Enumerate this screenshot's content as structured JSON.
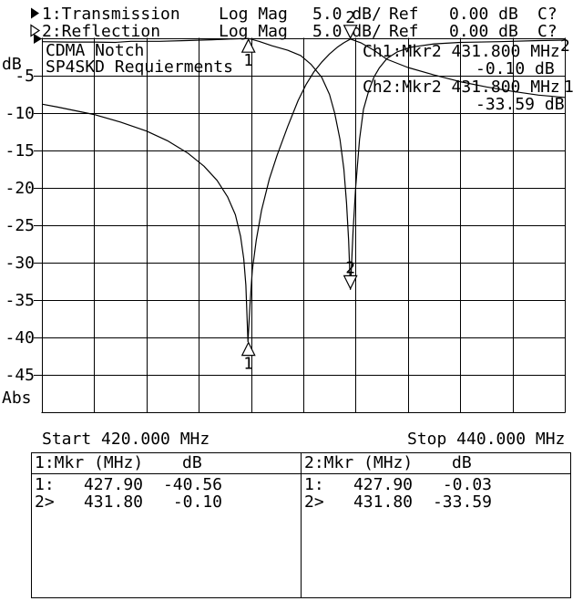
{
  "screen": {
    "bg": "#ffffff",
    "fg": "#000000"
  },
  "header": {
    "rows": [
      {
        "pointer": "filled-right-triangle",
        "channel": "1:Transmission",
        "format": "Log Mag",
        "scale": "5.0 dB/",
        "ref": "Ref",
        "ref_value": "0.00 dB",
        "cal": "C?"
      },
      {
        "pointer": "hollow-right-triangle",
        "channel": "2:Reflection",
        "format": "Log Mag",
        "scale": "5.0 dB/",
        "ref": "Ref",
        "ref_value": "0.00 dB",
        "cal": "C?"
      }
    ]
  },
  "plot": {
    "y_unit": "dB",
    "y_bottom_label": "Abs",
    "title_line1": "CDMA Notch",
    "title_line2": "SP4SKD Requierments",
    "readouts": [
      {
        "label": "Ch1:Mkr2 431.800 MHz",
        "value": "-0.10 dB"
      },
      {
        "label": "Ch2:Mkr2 431.800 MHz",
        "value": "-33.59 dB"
      }
    ],
    "x_start_label": "Start 420.000 MHz",
    "x_stop_label": "Stop 440.000 MHz"
  },
  "chart_data": {
    "type": "line",
    "title": "CDMA Notch SP4SKD Requierments",
    "x_range": [
      420,
      440
    ],
    "x_unit": "MHz",
    "x_divisions": 10,
    "y_range": [
      -50,
      0
    ],
    "y_per_div": 5,
    "y_tick_labels": [
      "-5",
      "-10",
      "-15",
      "-20",
      "-25",
      "-30",
      "-35",
      "-40",
      "-45"
    ],
    "grid": true,
    "series": [
      {
        "name": "ch1-transmission",
        "edge_label": "1",
        "points": [
          [
            420,
            -8.8
          ],
          [
            420.6,
            -9.2
          ],
          [
            421.3,
            -9.7
          ],
          [
            422,
            -10.2
          ],
          [
            423,
            -11.2
          ],
          [
            424,
            -12.4
          ],
          [
            424.8,
            -13.7
          ],
          [
            425.6,
            -15.4
          ],
          [
            426.2,
            -17.1
          ],
          [
            426.7,
            -19.0
          ],
          [
            427.1,
            -21.2
          ],
          [
            427.4,
            -23.6
          ],
          [
            427.6,
            -26.5
          ],
          [
            427.72,
            -29.5
          ],
          [
            427.8,
            -33.0
          ],
          [
            427.88,
            -40.56
          ],
          [
            427.96,
            -35.5
          ],
          [
            428.05,
            -31.0
          ],
          [
            428.2,
            -27.0
          ],
          [
            428.4,
            -23.0
          ],
          [
            428.7,
            -18.8
          ],
          [
            429.0,
            -15.6
          ],
          [
            429.4,
            -11.8
          ],
          [
            429.8,
            -8.3
          ],
          [
            430.1,
            -6.2
          ],
          [
            430.4,
            -4.5
          ],
          [
            430.7,
            -3.2
          ],
          [
            431.0,
            -2.1
          ],
          [
            431.3,
            -1.2
          ],
          [
            431.55,
            -0.6
          ],
          [
            431.8,
            -0.1
          ],
          [
            432.2,
            -0.6
          ],
          [
            432.7,
            -1.6
          ],
          [
            433.2,
            -2.8
          ],
          [
            434,
            -3.9
          ],
          [
            435,
            -4.9
          ],
          [
            436,
            -5.8
          ],
          [
            437,
            -6.5
          ],
          [
            438,
            -7.1
          ],
          [
            439,
            -7.6
          ],
          [
            440,
            -7.9
          ]
        ]
      },
      {
        "name": "ch2-reflection",
        "edge_label": "2",
        "points": [
          [
            420,
            -0.45
          ],
          [
            421,
            -0.5
          ],
          [
            422,
            -0.5
          ],
          [
            422.8,
            -0.55
          ],
          [
            423.4,
            -0.4
          ],
          [
            424.5,
            -0.4
          ],
          [
            425.5,
            -0.3
          ],
          [
            426.5,
            -0.2
          ],
          [
            427.2,
            -0.1
          ],
          [
            427.9,
            -0.03
          ],
          [
            428.3,
            -0.4
          ],
          [
            428.8,
            -1.0
          ],
          [
            429.4,
            -1.6
          ],
          [
            429.9,
            -2.3
          ],
          [
            430.3,
            -3.5
          ],
          [
            430.7,
            -5.2
          ],
          [
            431.0,
            -7.5
          ],
          [
            431.2,
            -10.0
          ],
          [
            431.4,
            -13.5
          ],
          [
            431.55,
            -17.5
          ],
          [
            431.65,
            -22.0
          ],
          [
            431.73,
            -27.0
          ],
          [
            431.8,
            -33.59
          ],
          [
            431.9,
            -26.0
          ],
          [
            432.0,
            -20.0
          ],
          [
            432.15,
            -13.5
          ],
          [
            432.3,
            -9.5
          ],
          [
            432.5,
            -7.0
          ],
          [
            432.7,
            -5.2
          ],
          [
            432.9,
            -4.0
          ],
          [
            433.2,
            -2.7
          ],
          [
            433.6,
            -1.8
          ],
          [
            434.1,
            -1.2
          ],
          [
            435,
            -0.75
          ],
          [
            436,
            -0.55
          ],
          [
            437.5,
            -0.45
          ],
          [
            439,
            -0.3
          ],
          [
            440,
            -0.25
          ]
        ]
      }
    ],
    "markers": [
      {
        "id": "1",
        "channel": 1,
        "freq": 427.9,
        "db": -40.56,
        "dir": "up"
      },
      {
        "id": "1",
        "channel": 2,
        "freq": 427.9,
        "db": -0.03,
        "dir": "up"
      },
      {
        "id": "2",
        "channel": 1,
        "freq": 431.8,
        "db": -0.1,
        "dir": "down"
      },
      {
        "id": "2",
        "channel": 2,
        "freq": 431.8,
        "db": -33.59,
        "dir": "down"
      }
    ]
  },
  "marker_table": {
    "panels": [
      {
        "header_label": "1:Mkr (MHz)",
        "header_unit": "dB",
        "rows": [
          {
            "label": "1:",
            "freq": "427.90",
            "db": "-40.56"
          },
          {
            "label": "2>",
            "freq": "431.80",
            "db": "-0.10"
          }
        ]
      },
      {
        "header_label": "2:Mkr (MHz)",
        "header_unit": "dB",
        "rows": [
          {
            "label": "1:",
            "freq": "427.90",
            "db": "-0.03"
          },
          {
            "label": "2>",
            "freq": "431.80",
            "db": "-33.59"
          }
        ]
      }
    ]
  }
}
